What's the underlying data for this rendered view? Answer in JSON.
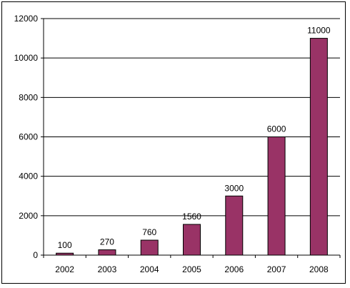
{
  "chart_data": {
    "type": "bar",
    "categories": [
      "2002",
      "2003",
      "2004",
      "2005",
      "2006",
      "2007",
      "2008"
    ],
    "values": [
      100,
      270,
      760,
      1560,
      3000,
      6000,
      11000
    ],
    "data_labels": [
      "100",
      "270",
      "760",
      "1560",
      "3000",
      "6000",
      "11000"
    ],
    "ylim": [
      0,
      12000
    ],
    "yticks": [
      0,
      2000,
      4000,
      6000,
      8000,
      10000,
      12000
    ],
    "ytick_labels": [
      "0",
      "2000",
      "4000",
      "6000",
      "8000",
      "10000",
      "12000"
    ],
    "grid": true,
    "legend": "none",
    "title": "",
    "xlabel": "",
    "ylabel": "",
    "colors": {
      "bar": "#993366",
      "bar_border": "#000000",
      "grid": "#000000",
      "axis": "#000000"
    }
  }
}
